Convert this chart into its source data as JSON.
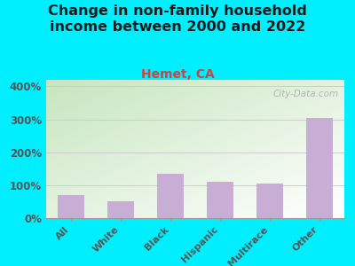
{
  "title": "Change in non-family household\nincome between 2000 and 2022",
  "subtitle": "Hemet, CA",
  "categories": [
    "All",
    "White",
    "Black",
    "Hispanic",
    "Multirace",
    "Other"
  ],
  "values": [
    70,
    50,
    135,
    110,
    105,
    305
  ],
  "bar_color": "#c8aed4",
  "title_fontsize": 11.5,
  "subtitle_fontsize": 10,
  "subtitle_color": "#cc4444",
  "title_color": "#1a1a1a",
  "background_outer": "#00efff",
  "background_grad_top_left": "#c8e6c0",
  "background_grad_bottom_right": "#f0f0e8",
  "ylim": [
    0,
    420
  ],
  "yticks": [
    0,
    100,
    200,
    300,
    400
  ],
  "tick_color": "#555555",
  "watermark": "City-Data.com",
  "grid_color": "#cccccc"
}
